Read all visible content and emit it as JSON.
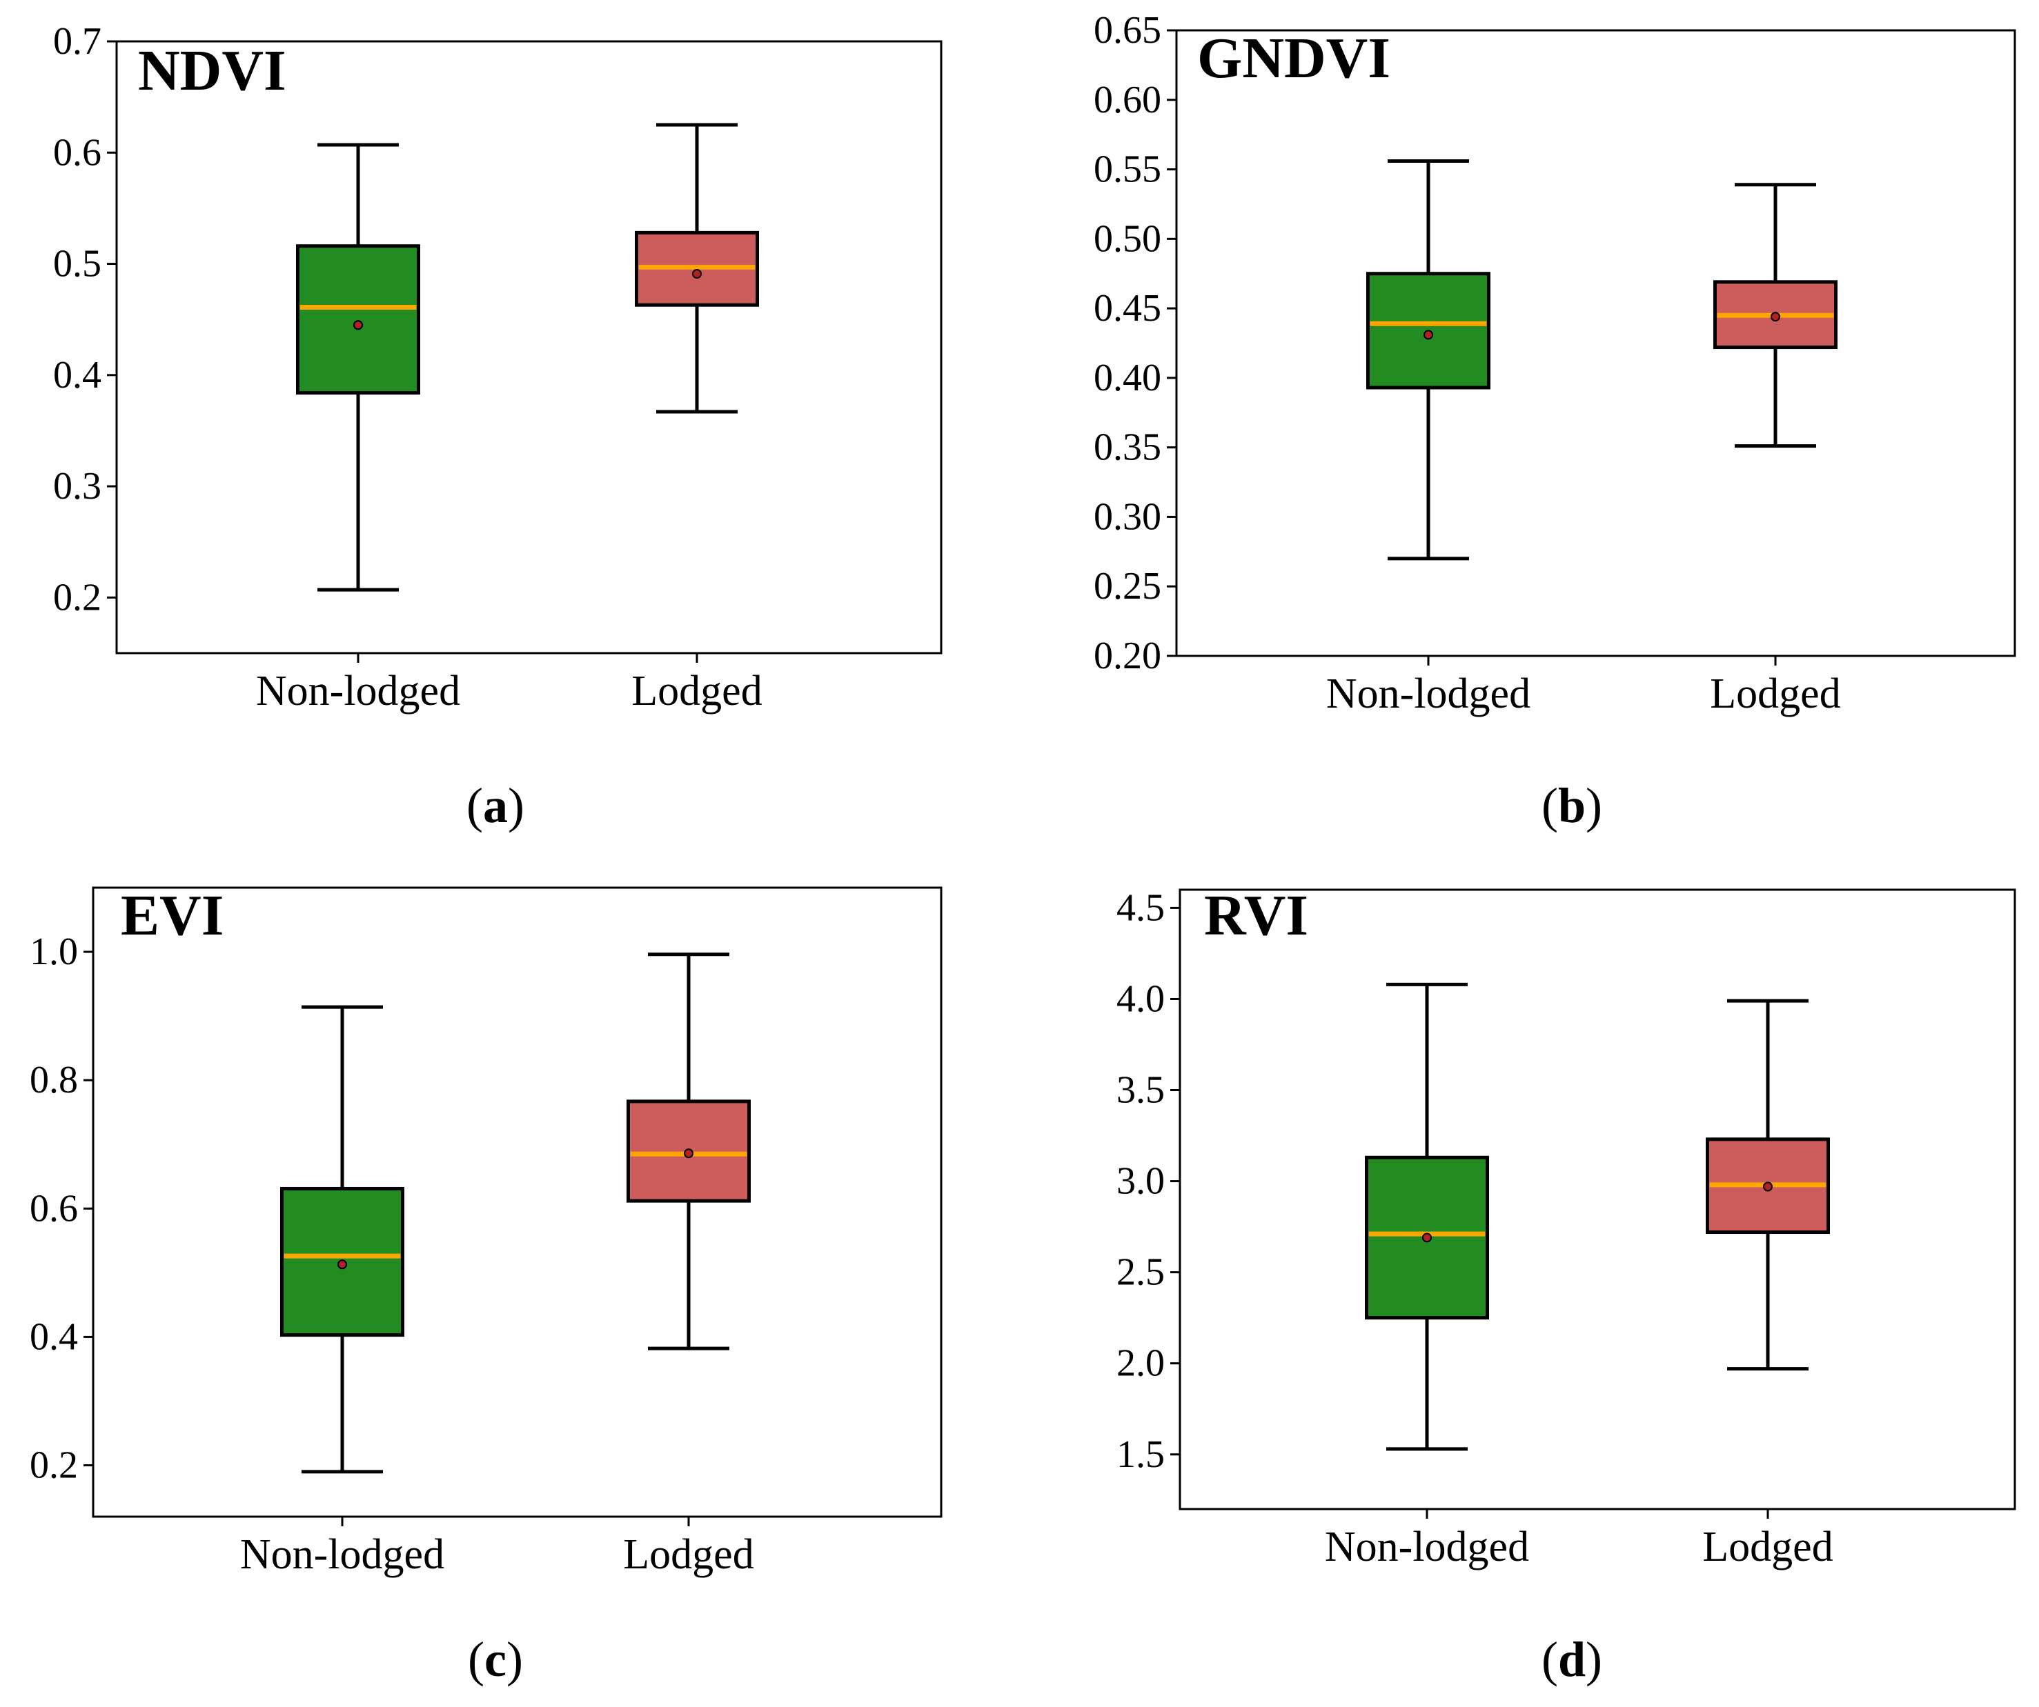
{
  "figure": {
    "colors": {
      "non_lodged_fill": "#228b22",
      "lodged_fill": "#cd5c5c",
      "median": "#ffa500",
      "mean_marker": "#b22222",
      "axis": "#000000"
    }
  },
  "chart_data": [
    {
      "type": "box",
      "title": "NDVI",
      "caption": {
        "open": "(",
        "letter": "a",
        "close": ")"
      },
      "categories": [
        "Non-lodged",
        "Lodged"
      ],
      "ylim": [
        0.15,
        0.7
      ],
      "yticks": [
        0.2,
        0.3,
        0.4,
        0.5,
        0.6,
        0.7
      ],
      "ytick_labels": [
        "0.2",
        "0.3",
        "0.4",
        "0.5",
        "0.6",
        "0.7"
      ],
      "boxes": [
        {
          "name": "Non-lodged",
          "whisker_low": 0.207,
          "q1": 0.384,
          "median": 0.461,
          "q3": 0.516,
          "whisker_high": 0.607,
          "mean": 0.445
        },
        {
          "name": "Lodged",
          "whisker_low": 0.367,
          "q1": 0.463,
          "median": 0.497,
          "q3": 0.528,
          "whisker_high": 0.625,
          "mean": 0.491
        }
      ]
    },
    {
      "type": "box",
      "title": "GNDVI",
      "caption": {
        "open": "(",
        "letter": "b",
        "close": ")"
      },
      "categories": [
        "Non-lodged",
        "Lodged"
      ],
      "ylim": [
        0.2,
        0.65
      ],
      "yticks": [
        0.2,
        0.25,
        0.3,
        0.35,
        0.4,
        0.45,
        0.5,
        0.55,
        0.6,
        0.65
      ],
      "ytick_labels": [
        "0.20",
        "0.25",
        "0.30",
        "0.35",
        "0.40",
        "0.45",
        "0.50",
        "0.55",
        "0.60",
        "0.65"
      ],
      "boxes": [
        {
          "name": "Non-lodged",
          "whisker_low": 0.27,
          "q1": 0.393,
          "median": 0.439,
          "q3": 0.475,
          "whisker_high": 0.556,
          "mean": 0.431
        },
        {
          "name": "Lodged",
          "whisker_low": 0.351,
          "q1": 0.422,
          "median": 0.445,
          "q3": 0.469,
          "whisker_high": 0.539,
          "mean": 0.444
        }
      ]
    },
    {
      "type": "box",
      "title": "EVI",
      "caption": {
        "open": "(",
        "letter": "c",
        "close": ")"
      },
      "categories": [
        "Non-lodged",
        "Lodged"
      ],
      "ylim": [
        0.12,
        1.1
      ],
      "yticks": [
        0.2,
        0.4,
        0.6,
        0.8,
        1.0
      ],
      "ytick_labels": [
        "0.2",
        "0.4",
        "0.6",
        "0.8",
        "1.0"
      ],
      "boxes": [
        {
          "name": "Non-lodged",
          "whisker_low": 0.19,
          "q1": 0.403,
          "median": 0.526,
          "q3": 0.631,
          "whisker_high": 0.914,
          "mean": 0.513
        },
        {
          "name": "Lodged",
          "whisker_low": 0.382,
          "q1": 0.612,
          "median": 0.685,
          "q3": 0.767,
          "whisker_high": 0.996,
          "mean": 0.686
        }
      ]
    },
    {
      "type": "box",
      "title": "RVI",
      "caption": {
        "open": "(",
        "letter": "d",
        "close": ")"
      },
      "categories": [
        "Non-lodged",
        "Lodged"
      ],
      "ylim": [
        1.2,
        4.6
      ],
      "yticks": [
        1.5,
        2.0,
        2.5,
        3.0,
        3.5,
        4.0,
        4.5
      ],
      "ytick_labels": [
        "1.5",
        "2.0",
        "2.5",
        "3.0",
        "3.5",
        "4.0",
        "4.5"
      ],
      "boxes": [
        {
          "name": "Non-lodged",
          "whisker_low": 1.53,
          "q1": 2.25,
          "median": 2.71,
          "q3": 3.13,
          "whisker_high": 4.08,
          "mean": 2.69
        },
        {
          "name": "Lodged",
          "whisker_low": 1.97,
          "q1": 2.72,
          "median": 2.98,
          "q3": 3.23,
          "whisker_high": 3.99,
          "mean": 2.97
        }
      ]
    }
  ]
}
